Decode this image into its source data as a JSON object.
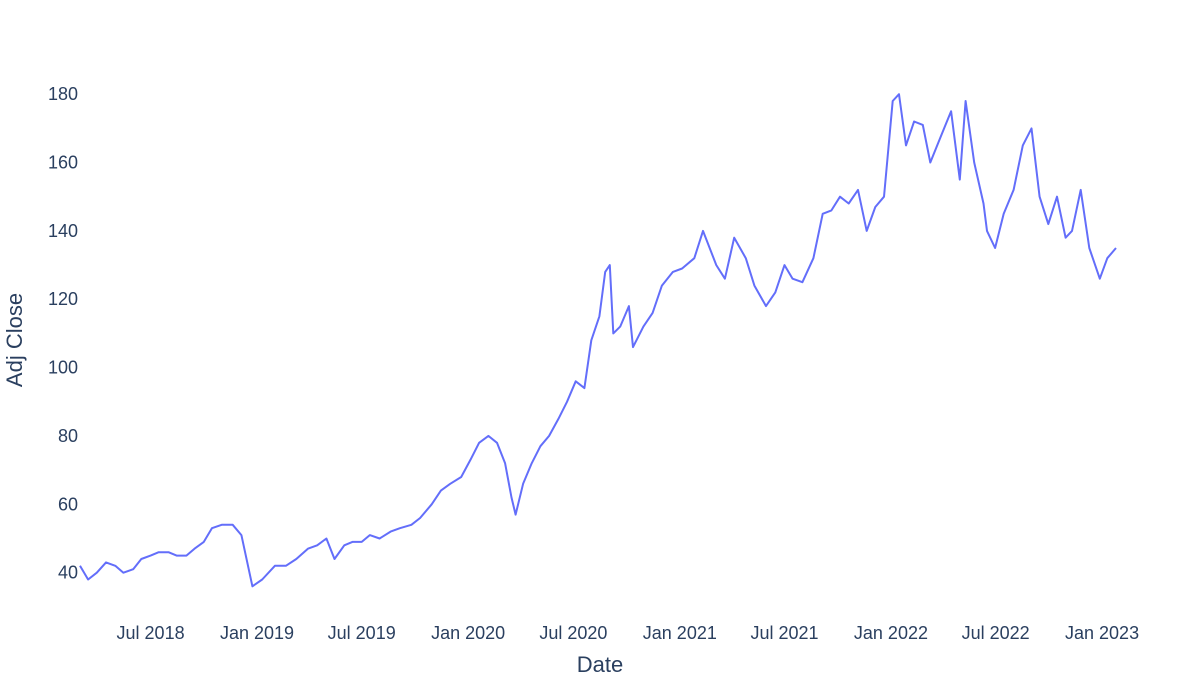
{
  "chart_data": {
    "type": "line",
    "title": "",
    "xlabel": "Date",
    "ylabel": "Adj Close",
    "x_type": "date",
    "xlim": [
      "2018-03-01",
      "2023-02-01"
    ],
    "ylim": [
      32,
      190
    ],
    "x_ticks": [
      {
        "date": "2018-07-01",
        "label": "Jul 2018"
      },
      {
        "date": "2019-01-01",
        "label": "Jan 2019"
      },
      {
        "date": "2019-07-01",
        "label": "Jul 2019"
      },
      {
        "date": "2020-01-01",
        "label": "Jan 2020"
      },
      {
        "date": "2020-07-01",
        "label": "Jul 2020"
      },
      {
        "date": "2021-01-01",
        "label": "Jan 2021"
      },
      {
        "date": "2021-07-01",
        "label": "Jul 2021"
      },
      {
        "date": "2022-01-01",
        "label": "Jan 2022"
      },
      {
        "date": "2022-07-01",
        "label": "Jul 2022"
      },
      {
        "date": "2023-01-01",
        "label": "Jan 2023"
      }
    ],
    "y_ticks": [
      40,
      60,
      80,
      100,
      120,
      140,
      160,
      180
    ],
    "grid": false,
    "legend": "none",
    "line_color": "#636efa",
    "series": [
      {
        "name": "",
        "x": [
          "2018-03-01",
          "2018-03-15",
          "2018-03-30",
          "2018-04-15",
          "2018-05-01",
          "2018-05-15",
          "2018-06-01",
          "2018-06-15",
          "2018-07-01",
          "2018-07-15",
          "2018-08-01",
          "2018-08-15",
          "2018-09-01",
          "2018-09-15",
          "2018-10-01",
          "2018-10-15",
          "2018-11-01",
          "2018-11-20",
          "2018-12-05",
          "2018-12-24",
          "2019-01-10",
          "2019-02-01",
          "2019-02-20",
          "2019-03-10",
          "2019-03-30",
          "2019-04-15",
          "2019-05-01",
          "2019-05-15",
          "2019-06-01",
          "2019-06-15",
          "2019-07-01",
          "2019-07-15",
          "2019-08-01",
          "2019-08-20",
          "2019-09-05",
          "2019-09-25",
          "2019-10-10",
          "2019-10-30",
          "2019-11-15",
          "2019-12-01",
          "2019-12-20",
          "2020-01-05",
          "2020-01-20",
          "2020-02-05",
          "2020-02-20",
          "2020-03-05",
          "2020-03-16",
          "2020-03-23",
          "2020-04-05",
          "2020-04-20",
          "2020-05-05",
          "2020-05-20",
          "2020-06-05",
          "2020-06-20",
          "2020-07-05",
          "2020-07-20",
          "2020-08-01",
          "2020-08-15",
          "2020-08-25",
          "2020-09-02",
          "2020-09-08",
          "2020-09-20",
          "2020-10-05",
          "2020-10-12",
          "2020-10-30",
          "2020-11-15",
          "2020-12-01",
          "2020-12-20",
          "2021-01-05",
          "2021-01-26",
          "2021-02-10",
          "2021-03-05",
          "2021-03-20",
          "2021-04-05",
          "2021-04-25",
          "2021-05-10",
          "2021-05-30",
          "2021-06-15",
          "2021-07-01",
          "2021-07-15",
          "2021-08-01",
          "2021-08-20",
          "2021-09-05",
          "2021-09-20",
          "2021-10-05",
          "2021-10-20",
          "2021-11-05",
          "2021-11-20",
          "2021-12-05",
          "2021-12-20",
          "2022-01-04",
          "2022-01-15",
          "2022-01-27",
          "2022-02-10",
          "2022-02-25",
          "2022-03-10",
          "2022-03-29",
          "2022-04-15",
          "2022-04-30",
          "2022-05-10",
          "2022-05-25",
          "2022-06-10",
          "2022-06-16",
          "2022-06-30",
          "2022-07-15",
          "2022-08-01",
          "2022-08-17",
          "2022-09-01",
          "2022-09-15",
          "2022-09-30",
          "2022-10-15",
          "2022-10-30",
          "2022-11-10",
          "2022-11-25",
          "2022-12-10",
          "2022-12-28",
          "2023-01-10",
          "2023-01-25"
        ],
        "y": [
          42,
          38,
          40,
          43,
          42,
          40,
          41,
          44,
          45,
          46,
          46,
          45,
          45,
          47,
          49,
          53,
          54,
          54,
          51,
          36,
          38,
          42,
          42,
          44,
          47,
          48,
          50,
          44,
          48,
          49,
          49,
          51,
          50,
          52,
          53,
          54,
          56,
          60,
          64,
          66,
          68,
          73,
          78,
          80,
          78,
          72,
          62,
          57,
          66,
          72,
          77,
          80,
          85,
          90,
          96,
          94,
          108,
          115,
          128,
          130,
          110,
          112,
          118,
          106,
          112,
          116,
          124,
          128,
          129,
          132,
          140,
          130,
          126,
          138,
          132,
          124,
          118,
          122,
          130,
          126,
          125,
          132,
          145,
          146,
          150,
          148,
          152,
          140,
          147,
          150,
          178,
          180,
          165,
          172,
          171,
          160,
          168,
          175,
          155,
          178,
          160,
          148,
          140,
          135,
          145,
          152,
          165,
          170,
          150,
          142,
          150,
          138,
          140,
          152,
          135,
          126,
          132,
          135
        ]
      }
    ]
  }
}
